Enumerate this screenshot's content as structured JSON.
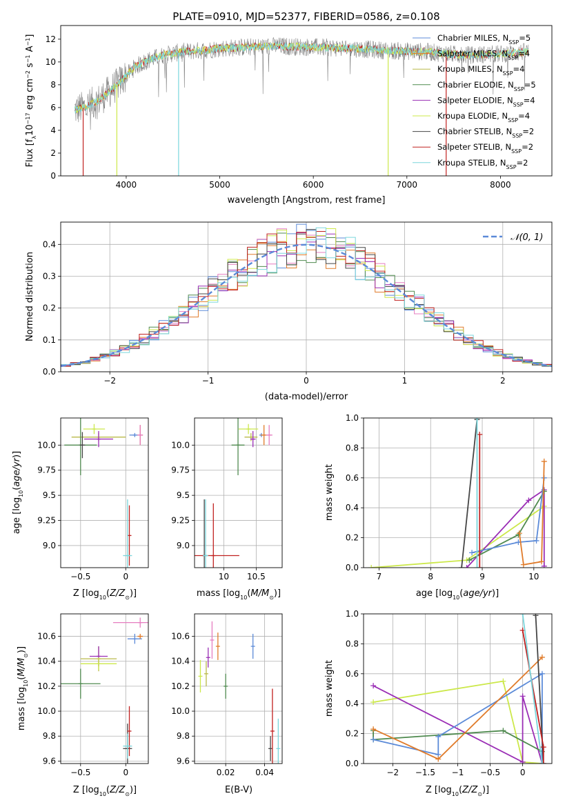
{
  "figure": {
    "title": "PLATE=0910, MJD=52377, FIBERID=0586, z=0.108"
  },
  "colors": {
    "chabrier_miles": "#5b8ad8",
    "salpeter_miles": "#e07b2a",
    "kroupa_miles": "#b9b948",
    "chabrier_elodie": "#4f8a4f",
    "salpeter_elodie": "#9a2db5",
    "kroupa_elodie": "#cce84a",
    "chabrier_stelib": "#454545",
    "salpeter_stelib": "#c0201f",
    "kroupa_stelib": "#7ad6dc",
    "pink": "#e67cc0",
    "data_gray": "#808080",
    "normal_curve": "#5b8ad8"
  },
  "chart_data": [
    {
      "id": "spectrum",
      "type": "line",
      "title": "PLATE=0910, MJD=52377, FIBERID=0586, z=0.108",
      "xlabel": "wavelength [Angstrom, rest frame]",
      "ylabel": "Flux [f_λ10^-17 erg cm^-2 s^-1 A^-1]",
      "xlim": [
        3300,
        8550
      ],
      "ylim": [
        0,
        13.2
      ],
      "xticks": [
        4000,
        5000,
        6000,
        7000,
        8000
      ],
      "yticks": [
        0,
        2,
        4,
        6,
        8,
        10,
        12
      ],
      "legend_position": "right",
      "legend": [
        {
          "label": "Chabrier MILES, N_SSP=5",
          "color": "#5b8ad8"
        },
        {
          "label": "Salpeter MILES, N_SSP=4",
          "color": "#e07b2a"
        },
        {
          "label": "Kroupa MILES, N_SSP=4",
          "color": "#b9b948"
        },
        {
          "label": "Chabrier ELODIE, N_SSP=5",
          "color": "#4f8a4f"
        },
        {
          "label": "Salpeter ELODIE, N_SSP=4",
          "color": "#9a2db5"
        },
        {
          "label": "Kroupa ELODIE, N_SSP=4",
          "color": "#cce84a"
        },
        {
          "label": "Chabrier STELIB, N_SSP=2",
          "color": "#454545"
        },
        {
          "label": "Salpeter STELIB, N_SSP=2",
          "color": "#c0201f"
        },
        {
          "label": "Kroupa STELIB, N_SSP=2",
          "color": "#7ad6dc"
        }
      ],
      "continuum": {
        "x": [
          3450,
          3550,
          3700,
          3850,
          3950,
          4100,
          4250,
          4400,
          4600,
          4800,
          5000,
          5300,
          5600,
          6000,
          6400,
          6800,
          7200,
          7600,
          8000,
          8300
        ],
        "y": [
          5.8,
          6.0,
          6.6,
          7.6,
          8.4,
          9.6,
          10.2,
          10.6,
          10.9,
          11.0,
          11.2,
          11.3,
          11.4,
          11.3,
          11.2,
          11.0,
          10.9,
          10.6,
          10.7,
          10.9
        ]
      }
    },
    {
      "id": "residuals",
      "type": "step",
      "xlabel": "(data-model)/error",
      "ylabel": "Normed distribution",
      "xlim": [
        -2.5,
        2.5
      ],
      "ylim": [
        0,
        0.47
      ],
      "xticks": [
        -2,
        -1,
        0,
        1,
        2
      ],
      "yticks": [
        0.0,
        0.1,
        0.2,
        0.3,
        0.4
      ],
      "legend_position": "top-right",
      "curve_label": "𝒩(0, 1)"
    },
    {
      "id": "age_vs_Z",
      "type": "errorbar",
      "xlabel": "Z [log10(Z/Z⊙)]",
      "ylabel": "age [log10(age/yr)]",
      "xlim": [
        -0.72,
        0.25
      ],
      "ylim": [
        8.78,
        10.27
      ],
      "xticks": [
        -0.5,
        0.0
      ],
      "yticks": [
        9.0,
        9.25,
        9.5,
        9.75,
        10.0
      ],
      "points": [
        {
          "x": 0.1,
          "y": 10.1,
          "xerr": 0.06,
          "yerr": 0.02,
          "color": "#5b8ad8"
        },
        {
          "x": 0.16,
          "y": 10.1,
          "xerr": 0.03,
          "yerr": 0.1,
          "color": "#e07b2a"
        },
        {
          "x": -0.3,
          "y": 10.08,
          "xerr": 0.3,
          "yerr": 0.04,
          "color": "#b9b948"
        },
        {
          "x": -0.5,
          "y": 10.0,
          "xerr": 0.18,
          "yerr": 0.3,
          "color": "#4f8a4f"
        },
        {
          "x": -0.3,
          "y": 10.06,
          "xerr": 0.16,
          "yerr": 0.08,
          "color": "#9a2db5"
        },
        {
          "x": -0.35,
          "y": 10.16,
          "xerr": 0.12,
          "yerr": 0.05,
          "color": "#cce84a"
        },
        {
          "x": -0.48,
          "y": 10.0,
          "xerr": 0.03,
          "yerr": 0.13,
          "color": "#454545"
        },
        {
          "x": 0.04,
          "y": 9.1,
          "xerr": 0.0,
          "yerr": 0.3,
          "color": "#c0201f"
        },
        {
          "x": 0.02,
          "y": 8.9,
          "xerr": 0.05,
          "yerr": 0.56,
          "color": "#7ad6dc"
        },
        {
          "x": 0.16,
          "y": 10.1,
          "xerr": 0.03,
          "yerr": 0.1,
          "color": "#e67cc0"
        }
      ]
    },
    {
      "id": "age_vs_mass",
      "type": "errorbar",
      "xlabel": "mass [log10(M/M⊙)]",
      "ylabel": "",
      "xlim": [
        9.55,
        10.9
      ],
      "ylim": [
        8.78,
        10.27
      ],
      "xticks": [
        10.0,
        10.5
      ],
      "yticks": [
        9.0,
        9.25,
        9.5,
        9.75,
        10.0
      ],
      "points": [
        {
          "x": 10.58,
          "y": 10.1,
          "xerr": 0.02,
          "yerr": 0.02,
          "color": "#5b8ad8"
        },
        {
          "x": 10.62,
          "y": 10.1,
          "xerr": 0.05,
          "yerr": 0.1,
          "color": "#e07b2a"
        },
        {
          "x": 10.42,
          "y": 10.08,
          "xerr": 0.1,
          "yerr": 0.04,
          "color": "#b9b948"
        },
        {
          "x": 10.22,
          "y": 10.0,
          "xerr": 0.1,
          "yerr": 0.3,
          "color": "#4f8a4f"
        },
        {
          "x": 10.45,
          "y": 10.06,
          "xerr": 0.04,
          "yerr": 0.08,
          "color": "#9a2db5"
        },
        {
          "x": 10.38,
          "y": 10.16,
          "xerr": 0.15,
          "yerr": 0.05,
          "color": "#cce84a"
        },
        {
          "x": 9.7,
          "y": 8.9,
          "xerr": 0.02,
          "yerr": 0.56,
          "color": "#454545"
        },
        {
          "x": 9.84,
          "y": 8.9,
          "xerr": 0.4,
          "yerr": 0.52,
          "color": "#c0201f"
        },
        {
          "x": 9.72,
          "y": 8.9,
          "xerr": 0.04,
          "yerr": 0.56,
          "color": "#7ad6dc"
        },
        {
          "x": 10.7,
          "y": 10.1,
          "xerr": 0.05,
          "yerr": 0.1,
          "color": "#e67cc0"
        }
      ]
    },
    {
      "id": "weight_vs_age",
      "type": "line",
      "xlabel": "age [log10(age/yr)]",
      "ylabel": "mass weight",
      "xlim": [
        6.7,
        10.35
      ],
      "ylim": [
        0,
        1.0
      ],
      "xticks": [
        7,
        8,
        9,
        10
      ],
      "yticks": [
        0.0,
        0.2,
        0.4,
        0.6,
        0.8,
        1.0
      ],
      "series": [
        {
          "color": "#cce84a",
          "x": [
            6.85,
            8.7,
            10.2
          ],
          "y": [
            0.0,
            0.05,
            0.41
          ]
        },
        {
          "color": "#9a2db5",
          "x": [
            8.7,
            9.9,
            10.2,
            10.2
          ],
          "y": [
            0.0,
            0.45,
            0.52,
            0.01
          ]
        },
        {
          "color": "#4f8a4f",
          "x": [
            8.75,
            9.7,
            10.2
          ],
          "y": [
            0.05,
            0.22,
            0.51
          ]
        },
        {
          "color": "#5b8ad8",
          "x": [
            8.8,
            9.7,
            10.05,
            10.2
          ],
          "y": [
            0.1,
            0.17,
            0.18,
            0.6
          ]
        },
        {
          "color": "#e07b2a",
          "x": [
            9.72,
            9.8,
            10.15,
            10.2
          ],
          "y": [
            0.23,
            0.02,
            0.04,
            0.71
          ]
        },
        {
          "color": "#454545",
          "x": [
            8.6,
            8.9
          ],
          "y": [
            0.0,
            0.99
          ]
        },
        {
          "color": "#c0201f",
          "x": [
            8.95,
            8.95
          ],
          "y": [
            0.0,
            0.89
          ]
        },
        {
          "color": "#7ad6dc",
          "x": [
            8.9,
            8.9
          ],
          "y": [
            0.0,
            1.0
          ]
        }
      ]
    },
    {
      "id": "mass_vs_Z",
      "type": "errorbar",
      "xlabel": "Z [log10(Z/Z⊙)]",
      "ylabel": "mass [log10(M/M⊙)]",
      "xlim": [
        -0.72,
        0.25
      ],
      "ylim": [
        9.58,
        10.78
      ],
      "xticks": [
        -0.5,
        0.0
      ],
      "yticks": [
        9.6,
        9.8,
        10.0,
        10.2,
        10.4,
        10.6
      ],
      "points": [
        {
          "x": 0.1,
          "y": 10.58,
          "xerr": 0.08,
          "yerr": 0.04,
          "color": "#5b8ad8"
        },
        {
          "x": 0.16,
          "y": 10.6,
          "xerr": 0.03,
          "yerr": 0.02,
          "color": "#e07b2a"
        },
        {
          "x": -0.3,
          "y": 10.42,
          "xerr": 0.2,
          "yerr": 0.1,
          "color": "#b9b948"
        },
        {
          "x": -0.5,
          "y": 10.22,
          "xerr": 0.22,
          "yerr": 0.12,
          "color": "#4f8a4f"
        },
        {
          "x": -0.3,
          "y": 10.44,
          "xerr": 0.1,
          "yerr": 0.08,
          "color": "#9a2db5"
        },
        {
          "x": -0.3,
          "y": 10.38,
          "xerr": 0.2,
          "yerr": 0.05,
          "color": "#cce84a"
        },
        {
          "x": 0.02,
          "y": 9.7,
          "xerr": 0.05,
          "yerr": 0.2,
          "color": "#454545"
        },
        {
          "x": 0.04,
          "y": 9.84,
          "xerr": 0.0,
          "yerr": 0.2,
          "color": "#c0201f"
        },
        {
          "x": 0.02,
          "y": 9.72,
          "xerr": 0.05,
          "yerr": 0.1,
          "color": "#7ad6dc"
        },
        {
          "x": 0.16,
          "y": 10.71,
          "xerr": 0.3,
          "yerr": 0.04,
          "color": "#e67cc0"
        }
      ]
    },
    {
      "id": "mass_vs_ebv",
      "type": "errorbar",
      "xlabel": "E(B-V)",
      "ylabel": "",
      "xlim": [
        0.004,
        0.049
      ],
      "ylim": [
        9.58,
        10.78
      ],
      "xticks": [
        0.02,
        0.04
      ],
      "yticks": [
        9.6,
        9.8,
        10.0,
        10.2,
        10.4,
        10.6
      ],
      "points": [
        {
          "x": 0.034,
          "y": 10.52,
          "yerr": 0.1,
          "color": "#5b8ad8"
        },
        {
          "x": 0.016,
          "y": 10.52,
          "yerr": 0.11,
          "color": "#e07b2a"
        },
        {
          "x": 0.01,
          "y": 10.3,
          "yerr": 0.1,
          "color": "#b9b948"
        },
        {
          "x": 0.02,
          "y": 10.2,
          "yerr": 0.1,
          "color": "#4f8a4f"
        },
        {
          "x": 0.011,
          "y": 10.43,
          "yerr": 0.08,
          "color": "#9a2db5"
        },
        {
          "x": 0.007,
          "y": 10.28,
          "yerr": 0.13,
          "color": "#cce84a"
        },
        {
          "x": 0.043,
          "y": 9.7,
          "yerr": 0.1,
          "color": "#454545"
        },
        {
          "x": 0.044,
          "y": 9.84,
          "yerr": 0.34,
          "color": "#c0201f"
        },
        {
          "x": 0.047,
          "y": 9.7,
          "yerr": 0.24,
          "color": "#7ad6dc"
        },
        {
          "x": 0.013,
          "y": 10.57,
          "yerr": 0.15,
          "color": "#e67cc0"
        }
      ]
    },
    {
      "id": "weight_vs_Z",
      "type": "line",
      "xlabel": "Z [log10(Z/Z⊙)]",
      "ylabel": "mass weight",
      "xlim": [
        -2.45,
        0.45
      ],
      "ylim": [
        0,
        1.0
      ],
      "xticks": [
        -2.0,
        -1.5,
        -1.0,
        -0.5,
        0.0
      ],
      "yticks": [
        0.0,
        0.2,
        0.4,
        0.6,
        0.8,
        1.0
      ],
      "series": [
        {
          "color": "#cce84a",
          "x": [
            -2.3,
            -0.3,
            0.0,
            0.3
          ],
          "y": [
            0.41,
            0.55,
            0.01,
            0.0
          ]
        },
        {
          "color": "#9a2db5",
          "x": [
            -2.3,
            0.0,
            0.0,
            0.3
          ],
          "y": [
            0.52,
            0.01,
            0.45,
            0.0
          ]
        },
        {
          "color": "#4f8a4f",
          "x": [
            -2.3,
            -2.3,
            -0.3,
            0.3
          ],
          "y": [
            0.22,
            0.16,
            0.22,
            0.08
          ]
        },
        {
          "color": "#5b8ad8",
          "x": [
            -2.3,
            -1.3,
            -1.3,
            0.3,
            0.3
          ],
          "y": [
            0.16,
            0.06,
            0.18,
            0.6,
            0.0
          ]
        },
        {
          "color": "#e07b2a",
          "x": [
            -2.3,
            -1.3,
            0.3
          ],
          "y": [
            0.23,
            0.03,
            0.71
          ]
        },
        {
          "color": "#454545",
          "x": [
            0.2,
            0.32
          ],
          "y": [
            0.99,
            0.0
          ]
        },
        {
          "color": "#c0201f",
          "x": [
            0.0,
            0.32,
            0.32
          ],
          "y": [
            0.89,
            0.11,
            0.0
          ]
        },
        {
          "color": "#7ad6dc",
          "x": [
            0.0,
            0.3
          ],
          "y": [
            1.0,
            0.0
          ]
        }
      ]
    }
  ]
}
